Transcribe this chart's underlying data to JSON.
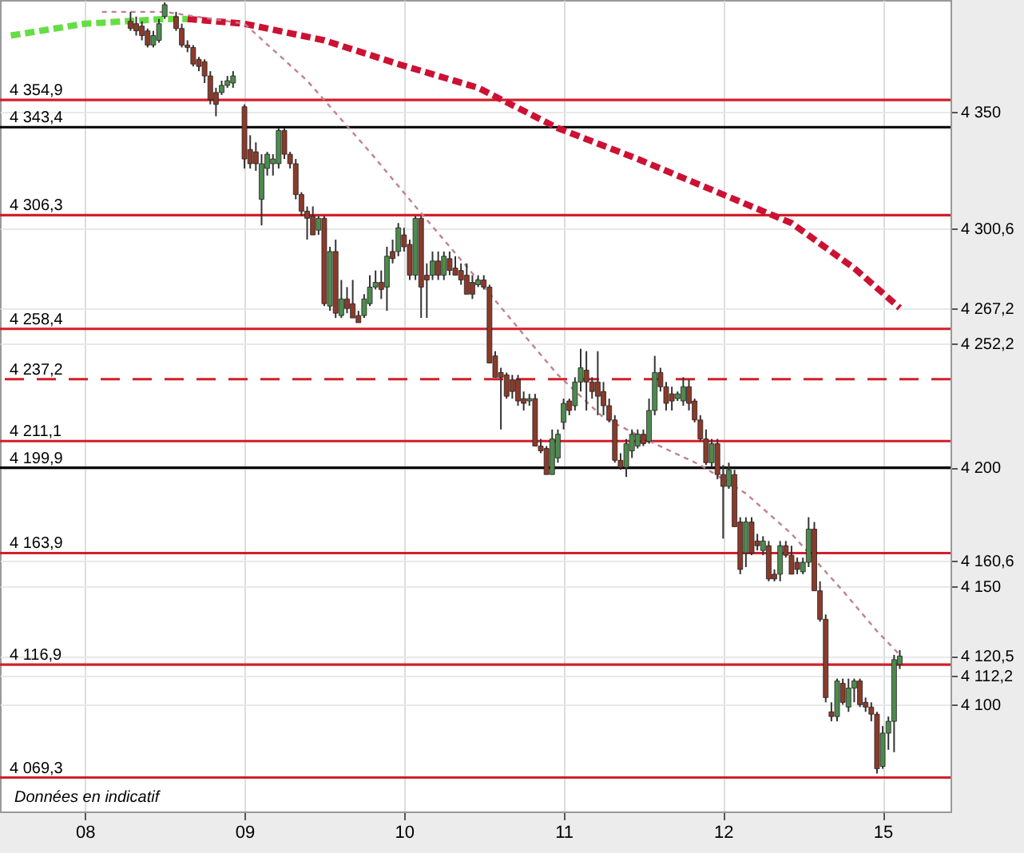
{
  "chart_data": {
    "type": "candlestick",
    "ylim": [
      4055,
      4397
    ],
    "yticks": [
      {
        "value": 4100,
        "label": "4 100"
      },
      {
        "value": 4112.2,
        "label": "4 112,2"
      },
      {
        "value": 4120.5,
        "label": "4 120,5"
      },
      {
        "value": 4150,
        "label": "4 150"
      },
      {
        "value": 4160.6,
        "label": "4 160,6"
      },
      {
        "value": 4200,
        "label": "4 200"
      },
      {
        "value": 4252.2,
        "label": "4 252,2"
      },
      {
        "value": 4267.2,
        "label": "4 267,2"
      },
      {
        "value": 4300.6,
        "label": "4 300,6"
      },
      {
        "value": 4350,
        "label": "4 350"
      }
    ],
    "grid": true,
    "categories": [
      null,
      null,
      null,
      null,
      null,
      null,
      null,
      null,
      null,
      null,
      null,
      null,
      null,
      "08",
      null,
      null,
      null,
      null,
      null,
      null,
      null,
      null,
      null,
      null,
      null,
      null,
      null,
      null,
      null,
      null,
      null,
      null,
      null,
      null,
      null,
      null,
      null,
      null,
      null,
      null,
      null,
      "09",
      null,
      null,
      null,
      null,
      null,
      null,
      null,
      null,
      null,
      null,
      null,
      null,
      null,
      null,
      null,
      null,
      null,
      null,
      null,
      null,
      null,
      null,
      null,
      null,
      null,
      null,
      null,
      "10",
      null,
      null,
      null,
      null,
      null,
      null,
      null,
      null,
      null,
      null,
      null,
      null,
      null,
      null,
      null,
      null,
      null,
      null,
      null,
      null,
      null,
      null,
      null,
      null,
      null,
      null,
      null,
      "11",
      null,
      null,
      null,
      null,
      null,
      null,
      null,
      null,
      null,
      null,
      null,
      null,
      null,
      null,
      null,
      null,
      null,
      null,
      null,
      null,
      null,
      null,
      null,
      null,
      null,
      null,
      null,
      "12",
      null,
      null,
      null,
      null,
      null,
      null,
      null,
      null,
      null,
      null,
      null,
      null,
      null,
      null,
      null,
      null,
      null,
      null,
      null,
      null,
      null,
      null,
      null,
      null,
      null,
      null,
      null,
      "15",
      null,
      null,
      null,
      null,
      null,
      null,
      null,
      null,
      null,
      null
    ],
    "ohlc": [
      null,
      null,
      null,
      null,
      null,
      null,
      null,
      null,
      null,
      null,
      null,
      null,
      null,
      null,
      null,
      null,
      null,
      null,
      null,
      null,
      null,
      [
        4388,
        4392,
        4384,
        4385
      ],
      [
        4387,
        4390,
        4382,
        4384
      ],
      [
        4386,
        4388,
        4380,
        4382
      ],
      [
        4384,
        4385,
        4377,
        4378
      ],
      [
        4378,
        4384,
        4377,
        4382
      ],
      [
        4380,
        4389,
        4379,
        4387
      ],
      [
        4390,
        4396,
        4389,
        4395
      ],
      null,
      [
        4390,
        4392,
        4384,
        4385
      ],
      [
        4385,
        4387,
        4377,
        4378
      ],
      [
        4378,
        4380,
        4375,
        4377
      ],
      [
        4377,
        4378,
        4369,
        4370
      ],
      [
        4372,
        4373,
        4367,
        4369
      ],
      [
        4371,
        4372,
        4362,
        4365
      ],
      [
        4365,
        4367,
        4353,
        4355
      ],
      [
        4358,
        4360,
        4348,
        4353
      ],
      [
        4358,
        4363,
        4357,
        4361
      ],
      [
        4361,
        4365,
        4360,
        4363
      ],
      [
        4362,
        4367,
        4360,
        4365
      ],
      null,
      [
        4352,
        4353,
        4326,
        4330
      ],
      [
        4334,
        4340,
        4326,
        4328
      ],
      [
        4333,
        4337,
        4325,
        4328
      ],
      [
        4313,
        4332,
        4302,
        4328
      ],
      [
        4326,
        4333,
        4323,
        4332
      ],
      [
        4328,
        4332,
        4323,
        4330
      ],
      [
        4328,
        4343,
        4326,
        4342
      ],
      [
        4342,
        4343,
        4330,
        4332
      ],
      [
        4332,
        4333,
        4326,
        4328
      ],
      [
        4328,
        4330,
        4313,
        4315
      ],
      [
        4315,
        4316,
        4306,
        4308
      ],
      [
        4308,
        4310,
        4296,
        4305
      ],
      [
        4306,
        4310,
        4298,
        4298
      ],
      [
        4300,
        4306,
        4298,
        4305
      ],
      [
        4305,
        4306,
        4268,
        4269
      ],
      [
        4268,
        4293,
        4266,
        4291
      ],
      [
        4291,
        4296,
        4263,
        4265
      ],
      [
        4264,
        4279,
        4263,
        4271
      ],
      [
        4271,
        4276,
        4265,
        4267
      ],
      [
        4269,
        4279,
        4263,
        4263
      ],
      [
        4264,
        4266,
        4261,
        4261
      ],
      [
        4264,
        4273,
        4263,
        4271
      ],
      [
        4269,
        4281,
        4268,
        4276
      ],
      [
        4276,
        4283,
        4275,
        4278
      ],
      [
        4278,
        4283,
        4271,
        4275
      ],
      [
        4276,
        4293,
        4266,
        4289
      ],
      [
        4291,
        4296,
        4286,
        4288
      ],
      [
        4291,
        4303,
        4289,
        4301
      ],
      [
        4298,
        4301,
        4291,
        4293
      ],
      [
        4294,
        4296,
        4279,
        4281
      ],
      [
        4281,
        4306,
        4279,
        4305
      ],
      [
        4305,
        4306,
        4263,
        4276
      ],
      [
        4281,
        4286,
        4263,
        4279
      ],
      [
        4281,
        4291,
        4279,
        4287
      ],
      [
        4287,
        4291,
        4279,
        4281
      ],
      [
        4281,
        4291,
        4279,
        4289
      ],
      [
        4288,
        4291,
        4281,
        4283
      ],
      [
        4284,
        4289,
        4281,
        4281
      ],
      [
        4283,
        4286,
        4277,
        4279
      ],
      [
        4281,
        4286,
        4273,
        4273
      ],
      [
        4278,
        4281,
        4271,
        4273
      ],
      [
        4277,
        4281,
        4276,
        4279
      ],
      [
        4279,
        4281,
        4275,
        4276
      ],
      [
        4276,
        4277,
        4244,
        4244
      ],
      [
        4247,
        4249,
        4238,
        4238
      ],
      [
        4240,
        4242,
        4216,
        4238
      ],
      [
        4239,
        4240,
        4229,
        4230
      ],
      [
        4237,
        4239,
        4229,
        4232
      ],
      [
        4237,
        4239,
        4226,
        4228
      ],
      [
        4229,
        4232,
        4224,
        4227
      ],
      [
        4228,
        4231,
        4226,
        4229
      ],
      [
        4229,
        4231,
        4209,
        4209
      ],
      [
        4209,
        4212,
        4206,
        4207
      ],
      [
        4208,
        4209,
        4197,
        4197
      ],
      [
        4197,
        4216,
        4197,
        4212
      ],
      [
        4204,
        4216,
        4202,
        4214
      ],
      [
        4219,
        4229,
        4216,
        4227
      ],
      [
        4228,
        4229,
        4222,
        4224
      ],
      [
        4226,
        4238,
        4224,
        4236
      ],
      [
        4236,
        4250,
        4232,
        4242
      ],
      [
        4241,
        4249,
        4224,
        4236
      ],
      [
        4236,
        4238,
        4229,
        4232
      ],
      [
        4236,
        4249,
        4222,
        4230
      ],
      [
        4232,
        4236,
        4222,
        4226
      ],
      [
        4226,
        4229,
        4219,
        4220
      ],
      [
        4220,
        4222,
        4202,
        4203
      ],
      [
        4203,
        4206,
        4199,
        4200
      ],
      [
        4200,
        4212,
        4196,
        4210
      ],
      [
        4207,
        4216,
        4204,
        4214
      ],
      [
        4209,
        4216,
        4208,
        4214
      ],
      [
        4214,
        4216,
        4209,
        4210
      ],
      [
        4211,
        4229,
        4210,
        4224
      ],
      [
        4224,
        4247,
        4222,
        4240
      ],
      [
        4240,
        4242,
        4232,
        4234
      ],
      [
        4234,
        4236,
        4224,
        4227
      ],
      [
        4231,
        4234,
        4224,
        4228
      ],
      [
        4229,
        4232,
        4228,
        4231
      ],
      [
        4228,
        4238,
        4226,
        4234
      ],
      [
        4234,
        4237,
        4224,
        4227
      ],
      [
        4228,
        4229,
        4219,
        4220
      ],
      [
        4220,
        4222,
        4211,
        4212
      ],
      [
        4212,
        4216,
        4201,
        4202
      ],
      [
        4202,
        4212,
        4200,
        4210
      ],
      [
        4210,
        4212,
        4195,
        4197
      ],
      [
        4197,
        4201,
        4170,
        4192
      ],
      [
        4192,
        4202,
        4191,
        4199
      ],
      [
        4197,
        4199,
        4175,
        4175
      ],
      [
        4177,
        4179,
        4155,
        4157
      ],
      [
        4164,
        4179,
        4158,
        4177
      ],
      [
        4177,
        4179,
        4163,
        4164
      ],
      [
        4169,
        4172,
        4165,
        4167
      ],
      [
        4165,
        4171,
        4163,
        4169
      ],
      [
        4167,
        4169,
        4152,
        4153
      ],
      [
        4155,
        4157,
        4152,
        4153
      ],
      [
        4155,
        4169,
        4152,
        4167
      ],
      [
        4167,
        4169,
        4162,
        4163
      ],
      [
        4163,
        4167,
        4155,
        4155
      ],
      [
        4160,
        4162,
        4155,
        4157
      ],
      [
        4156,
        4162,
        4155,
        4160
      ],
      [
        4160,
        4179,
        4158,
        4174
      ],
      [
        4174,
        4177,
        4148,
        4148
      ],
      [
        4148,
        4152,
        4135,
        4136
      ],
      [
        4136,
        4138,
        4101,
        4103
      ],
      [
        4097,
        4101,
        4093,
        4095
      ],
      [
        4095,
        4111,
        4093,
        4110
      ],
      [
        4109,
        4111,
        4100,
        4101
      ],
      [
        4099,
        4111,
        4097,
        4107
      ],
      [
        4107,
        4111,
        4101,
        4110
      ],
      [
        4110,
        4111,
        4099,
        4100
      ],
      [
        4101,
        4103,
        4097,
        4099
      ],
      [
        4099,
        4101,
        4093,
        4096
      ],
      [
        4096,
        4097,
        4071,
        4073
      ],
      [
        4074,
        4091,
        4073,
        4088
      ],
      [
        4088,
        4095,
        4081,
        4093
      ],
      [
        4093,
        4121,
        4080,
        4119
      ],
      [
        4117,
        4123,
        4115,
        4120.5
      ],
      null,
      null,
      null,
      null,
      null,
      null,
      null
    ],
    "colors": [
      null,
      null,
      null,
      null,
      null,
      null,
      null,
      null,
      null,
      null,
      null,
      null,
      null,
      null,
      null,
      null,
      null,
      null,
      null,
      null,
      null,
      "#8b3a2a",
      "#8b3a2a",
      "#8b3a2a",
      "#8b3a2a",
      "#4e8a4e",
      "#4e8a4e",
      "#4e8a4e",
      null,
      "#8b3a2a",
      "#8b3a2a",
      "#8b3a2a",
      "#8b3a2a",
      "#8b3a2a",
      "#8b3a2a",
      "#8b3a2a",
      "#8b3a2a",
      "#4e8a4e",
      "#4e8a4e",
      "#4e8a4e",
      null,
      "#8b3a2a",
      "#8b3a2a",
      "#8b3a2a",
      "#4e8a4e",
      "#4e8a4e",
      "#4e8a4e",
      "#4e8a4e",
      "#8b3a2a",
      "#8b3a2a",
      "#8b3a2a",
      "#8b3a2a",
      "#8b3a2a",
      "#8b3a2a",
      "#4e8a4e",
      "#8b3a2a",
      "#4e8a4e",
      "#8b3a2a",
      "#4e8a4e",
      "#8b3a2a",
      "#8b3a2a",
      "#8b3a2a",
      "#4e8a4e",
      "#4e8a4e",
      "#4e8a4e",
      "#8b3a2a",
      "#4e8a4e",
      "#8b3a2a",
      "#4e8a4e",
      "#8b3a2a",
      "#8b3a2a",
      "#4e8a4e",
      "#8b3a2a",
      "#8b3a2a",
      "#4e8a4e",
      "#8b3a2a",
      "#4e8a4e",
      "#8b3a2a",
      "#8b3a2a",
      "#8b3a2a",
      "#8b3a2a",
      "#8b3a2a",
      "#4e8a4e",
      "#8b3a2a",
      "#8b3a2a",
      "#8b3a2a",
      "#8b3a2a",
      "#8b3a2a",
      "#8b3a2a",
      "#8b3a2a",
      "#8b3a2a",
      "#4e8a4e",
      "#8b3a2a",
      "#8b3a2a",
      "#8b3a2a",
      "#4e8a4e",
      "#4e8a4e",
      "#4e8a4e",
      "#8b3a2a",
      "#4e8a4e",
      "#4e8a4e",
      "#8b3a2a",
      "#8b3a2a",
      "#8b3a2a",
      "#8b3a2a",
      "#8b3a2a",
      "#8b3a2a",
      "#8b3a2a",
      "#4e8a4e",
      "#4e8a4e",
      "#4e8a4e",
      "#8b3a2a",
      "#4e8a4e",
      "#4e8a4e",
      "#8b3a2a",
      "#8b3a2a",
      "#8b3a2a",
      "#4e8a4e",
      "#4e8a4e",
      "#8b3a2a",
      "#8b3a2a",
      "#8b3a2a",
      "#8b3a2a",
      "#4e8a4e",
      "#8b3a2a",
      "#8b3a2a",
      "#4e8a4e",
      "#8b3a2a",
      "#8b3a2a",
      "#4e8a4e",
      "#8b3a2a",
      "#8b3a2a",
      "#4e8a4e",
      "#8b3a2a",
      "#8b3a2a",
      "#4e8a4e",
      "#8b3a2a",
      "#8b3a2a",
      "#8b3a2a",
      "#4e8a4e",
      "#4e8a4e",
      "#8b3a2a",
      "#8b3a2a",
      "#8b3a2a",
      "#8b3a2a",
      "#4e8a4e",
      "#8b3a2a",
      "#4e8a4e",
      "#4e8a4e",
      "#8b3a2a",
      "#8b3a2a",
      "#8b3a2a",
      "#8b3a2a",
      "#4e8a4e",
      "#4e8a4e",
      "#4e8a4e",
      "#4e8a4e",
      null,
      null,
      null,
      null,
      null,
      null,
      null
    ],
    "series": [
      {
        "type": "line",
        "color": "#66dd44",
        "line_style": "dashed",
        "values": [
          4382,
          null,
          null,
          null,
          null,
          null,
          null,
          null,
          null,
          null,
          null,
          null,
          null,
          4387,
          null,
          null,
          null,
          null,
          null,
          null,
          null,
          null,
          null,
          null,
          null,
          null,
          null,
          4389,
          null,
          null,
          null,
          4389,
          null,
          null,
          null,
          null,
          null,
          null,
          null,
          null,
          null,
          null,
          null,
          null,
          null,
          null,
          null,
          null,
          null,
          null,
          null,
          null,
          null,
          null,
          null,
          null,
          null,
          null,
          null,
          null,
          null,
          null,
          null,
          null,
          null,
          null,
          null,
          null,
          null,
          null,
          null,
          null,
          null,
          null,
          null,
          null,
          null,
          null,
          null,
          null,
          null,
          null,
          null,
          null,
          null,
          null,
          null,
          null,
          null,
          null,
          null,
          null,
          null,
          null,
          null,
          null,
          null,
          null,
          null,
          null,
          null,
          null,
          null,
          null,
          null,
          null,
          null,
          null,
          null,
          null,
          null,
          null,
          null,
          null,
          null,
          null,
          null,
          null,
          null,
          null,
          null,
          null,
          null,
          null,
          null,
          null,
          null,
          null,
          null,
          null,
          null,
          null,
          null,
          null,
          null,
          null,
          null,
          null,
          null,
          null,
          null,
          null,
          null,
          null,
          null,
          null,
          null,
          null,
          null,
          null,
          null,
          null,
          null,
          null,
          null,
          null,
          null,
          null,
          null,
          null,
          null,
          null,
          null,
          null
        ]
      },
      {
        "type": "line",
        "color": "#cc1133",
        "line_style": "dashed",
        "values": [
          null,
          null,
          null,
          null,
          null,
          null,
          null,
          null,
          null,
          null,
          null,
          null,
          null,
          null,
          null,
          null,
          null,
          null,
          null,
          null,
          null,
          null,
          null,
          null,
          null,
          null,
          null,
          null,
          null,
          null,
          null,
          4389,
          null,
          null,
          null,
          null,
          null,
          null,
          null,
          null,
          null,
          4387,
          null,
          null,
          null,
          null,
          null,
          null,
          null,
          null,
          null,
          null,
          null,
          null,
          null,
          4380,
          null,
          null,
          null,
          null,
          null,
          null,
          null,
          null,
          null,
          null,
          null,
          null,
          4370,
          null,
          null,
          null,
          null,
          null,
          null,
          null,
          null,
          null,
          null,
          null,
          null,
          null,
          4360,
          null,
          null,
          null,
          null,
          null,
          null,
          null,
          null,
          null,
          null,
          null,
          null,
          null,
          4343,
          null,
          null,
          null,
          null,
          null,
          null,
          null,
          null,
          null,
          null,
          null,
          null,
          null,
          4330,
          null,
          null,
          null,
          null,
          null,
          null,
          null,
          null,
          null,
          null,
          null,
          null,
          null,
          4316,
          null,
          null,
          null,
          null,
          null,
          null,
          null,
          null,
          null,
          null,
          null,
          null,
          4303,
          null,
          null,
          null,
          null,
          null,
          null,
          null,
          null,
          null,
          null,
          4284,
          null,
          null,
          null,
          null,
          null,
          null,
          null,
          4267.2,
          null,
          null,
          null,
          null,
          null,
          null,
          null
        ]
      },
      {
        "type": "line",
        "color": "#c08090",
        "line_style": "dotted",
        "values": [
          null,
          null,
          null,
          null,
          null,
          null,
          null,
          null,
          null,
          null,
          null,
          null,
          null,
          null,
          null,
          null,
          4392,
          null,
          null,
          null,
          null,
          null,
          null,
          null,
          null,
          null,
          null,
          4392,
          null,
          null,
          null,
          null,
          null,
          null,
          null,
          null,
          null,
          null,
          null,
          null,
          null,
          4387,
          null,
          null,
          null,
          null,
          null,
          null,
          null,
          null,
          null,
          null,
          4363,
          null,
          null,
          null,
          null,
          null,
          null,
          null,
          null,
          null,
          null,
          4333,
          null,
          null,
          null,
          null,
          null,
          null,
          null,
          4310,
          null,
          null,
          null,
          null,
          null,
          null,
          null,
          null,
          null,
          null,
          4279,
          null,
          null,
          null,
          null,
          null,
          null,
          null,
          4256,
          null,
          null,
          null,
          null,
          null,
          4239,
          null,
          null,
          null,
          null,
          null,
          null,
          null,
          4221,
          null,
          null,
          null,
          null,
          null,
          null,
          null,
          null,
          4210,
          null,
          null,
          null,
          null,
          null,
          null,
          null,
          4201,
          null,
          null,
          null,
          null,
          null,
          null,
          null,
          4189,
          null,
          null,
          null,
          null,
          null,
          null,
          null,
          4172,
          null,
          null,
          null,
          null,
          null,
          null,
          null,
          null,
          4148,
          null,
          null,
          null,
          null,
          null,
          4131,
          null,
          null,
          null,
          4121,
          null,
          null,
          null,
          null,
          null,
          null,
          null
        ]
      }
    ],
    "ref_lines": [
      {
        "axis": "y",
        "value": 4354.9,
        "label": "4 354,9",
        "color": "#d0202a",
        "line_style": "solid"
      },
      {
        "axis": "y",
        "value": 4343.4,
        "label": "4 343,4",
        "color": "#000000",
        "line_style": "solid"
      },
      {
        "axis": "y",
        "value": 4306.3,
        "label": "4 306,3",
        "color": "#d0202a",
        "line_style": "solid"
      },
      {
        "axis": "y",
        "value": 4258.4,
        "label": "4 258,4",
        "color": "#d0202a",
        "line_style": "solid"
      },
      {
        "axis": "y",
        "value": 4237.2,
        "label": "4 237,2",
        "color": "#d0202a",
        "line_style": "dashed"
      },
      {
        "axis": "y",
        "value": 4211.1,
        "label": "4 211,1",
        "color": "#d0202a",
        "line_style": "solid"
      },
      {
        "axis": "y",
        "value": 4199.9,
        "label": "4 199,9",
        "color": "#000000",
        "line_style": "solid"
      },
      {
        "axis": "y",
        "value": 4163.9,
        "label": "4 163,9",
        "color": "#d0202a",
        "line_style": "solid"
      },
      {
        "axis": "y",
        "value": 4116.9,
        "label": "4 116,9",
        "color": "#d0202a",
        "line_style": "solid"
      },
      {
        "axis": "y",
        "value": 4069.3,
        "label": "4 069,3",
        "color": "#d0202a",
        "line_style": "solid"
      }
    ],
    "annotations": [
      "Données en indicatif"
    ]
  }
}
